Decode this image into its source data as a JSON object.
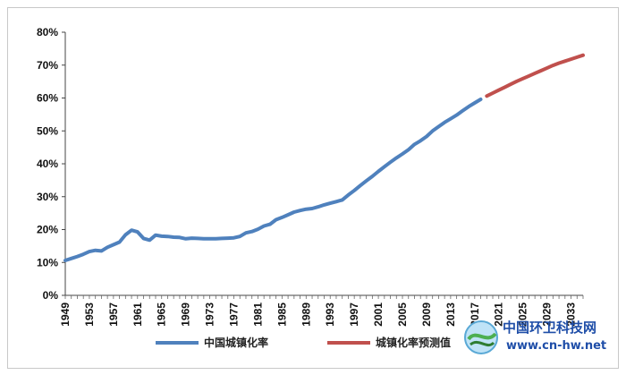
{
  "chart_data": {
    "type": "line",
    "title": "",
    "xlabel": "",
    "ylabel": "",
    "ylim": [
      0,
      0.8
    ],
    "xlim": [
      1949,
      2035
    ],
    "y_ticks": [
      "0%",
      "10%",
      "20%",
      "30%",
      "40%",
      "50%",
      "60%",
      "70%",
      "80%"
    ],
    "x_ticks": [
      "1949",
      "1953",
      "1957",
      "1961",
      "1965",
      "1969",
      "1973",
      "1977",
      "1981",
      "1985",
      "1989",
      "1993",
      "1997",
      "2001",
      "2005",
      "2009",
      "2013",
      "2017",
      "2021",
      "2025",
      "2029",
      "2033"
    ],
    "grid": false,
    "legend_position": "bottom",
    "series": [
      {
        "name": "中国城镇化率",
        "color": "#4f81bd",
        "x": [
          1949,
          1950,
          1951,
          1952,
          1953,
          1954,
          1955,
          1956,
          1957,
          1958,
          1959,
          1960,
          1961,
          1962,
          1963,
          1964,
          1965,
          1966,
          1967,
          1968,
          1969,
          1970,
          1971,
          1972,
          1973,
          1974,
          1975,
          1976,
          1977,
          1978,
          1979,
          1980,
          1981,
          1982,
          1983,
          1984,
          1985,
          1986,
          1987,
          1988,
          1989,
          1990,
          1991,
          1992,
          1993,
          1994,
          1995,
          1996,
          1997,
          1998,
          1999,
          2000,
          2001,
          2002,
          2003,
          2004,
          2005,
          2006,
          2007,
          2008,
          2009,
          2010,
          2011,
          2012,
          2013,
          2014,
          2015,
          2016,
          2017,
          2018
        ],
        "values": [
          0.106,
          0.112,
          0.118,
          0.125,
          0.133,
          0.137,
          0.135,
          0.146,
          0.154,
          0.162,
          0.184,
          0.198,
          0.193,
          0.173,
          0.168,
          0.183,
          0.18,
          0.179,
          0.177,
          0.176,
          0.172,
          0.174,
          0.173,
          0.172,
          0.172,
          0.172,
          0.173,
          0.174,
          0.175,
          0.179,
          0.19,
          0.194,
          0.201,
          0.211,
          0.216,
          0.23,
          0.237,
          0.245,
          0.253,
          0.258,
          0.262,
          0.264,
          0.269,
          0.275,
          0.28,
          0.285,
          0.29,
          0.305,
          0.319,
          0.334,
          0.348,
          0.362,
          0.377,
          0.391,
          0.405,
          0.418,
          0.43,
          0.443,
          0.459,
          0.47,
          0.483,
          0.5,
          0.513,
          0.526,
          0.537,
          0.548,
          0.561,
          0.574,
          0.585,
          0.596
        ]
      },
      {
        "name": "城镇化率预测值",
        "color": "#c0504d",
        "x": [
          2019,
          2020,
          2021,
          2022,
          2023,
          2024,
          2025,
          2026,
          2027,
          2028,
          2029,
          2030,
          2031,
          2032,
          2033,
          2034,
          2035
        ],
        "values": [
          0.606,
          0.615,
          0.624,
          0.633,
          0.642,
          0.651,
          0.659,
          0.667,
          0.675,
          0.683,
          0.691,
          0.699,
          0.706,
          0.712,
          0.718,
          0.724,
          0.73
        ]
      }
    ]
  },
  "legend": {
    "item1": "中国城镇化率",
    "item2": "城镇化率预测值"
  },
  "watermark": {
    "title": "中国环卫科技网",
    "url": "www.cn-hw.net"
  }
}
